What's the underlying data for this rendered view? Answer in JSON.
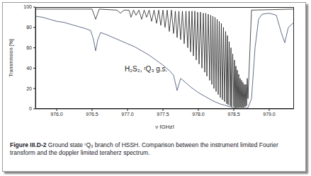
{
  "chart_data": {
    "type": "line",
    "xlabel": "ν [GHz]",
    "ylabel": "Transmission [%]",
    "annotations": [
      "H₂S₂, ʳQ₃ g.s."
    ],
    "xlim": [
      975.7,
      979.35
    ],
    "xticks": [
      {
        "value": 976,
        "label": "976.0"
      },
      {
        "value": 976.5,
        "label": "976.5"
      },
      {
        "value": 977,
        "label": "977.0"
      },
      {
        "value": 977.5,
        "label": "977.5"
      },
      {
        "value": 978,
        "label": "978.0"
      },
      {
        "value": 978.5,
        "label": "978.5"
      },
      {
        "value": 979,
        "label": "979.0"
      }
    ],
    "ylim": [
      0,
      100
    ],
    "yticks": [
      0,
      20,
      40,
      60,
      80,
      100
    ],
    "series": [
      {
        "color": "#222222",
        "x": [
          975.7,
          976.5,
          976.55,
          976.6,
          976.85,
          976.9,
          976.95,
          977.02,
          977.05,
          977.085,
          977.12,
          977.16,
          977.2,
          977.235,
          977.27,
          977.305,
          977.34,
          977.375,
          977.41,
          977.44,
          977.47,
          977.5,
          977.53,
          977.56,
          977.59,
          977.62,
          977.65,
          977.675,
          977.7,
          977.725,
          977.75,
          977.775,
          977.8,
          977.825,
          977.85,
          977.87,
          977.89,
          977.91,
          977.93,
          977.95,
          977.97,
          977.99,
          978.01,
          978.03,
          978.05,
          978.07,
          978.09,
          978.105,
          978.12,
          978.14,
          978.16,
          978.175,
          978.19,
          978.205,
          978.22,
          978.235,
          978.25,
          978.265,
          978.28,
          978.295,
          978.31,
          978.325,
          978.34,
          978.355,
          978.37,
          978.385,
          978.4,
          978.41,
          978.42,
          978.435,
          978.45,
          978.46,
          978.47,
          978.485,
          978.5,
          978.51,
          978.52,
          978.53,
          978.54,
          978.55,
          978.56,
          978.57,
          978.58,
          978.59,
          978.6,
          978.61,
          978.62,
          978.63,
          978.64,
          978.65,
          978.66,
          978.67,
          978.68,
          978.69,
          978.7,
          978.75,
          979.35
        ],
        "values": [
          98,
          98,
          88,
          98,
          97,
          94,
          97,
          97,
          90,
          97,
          92,
          97,
          88,
          97,
          90,
          97,
          86,
          97,
          84,
          97,
          82,
          97,
          80,
          97,
          76,
          97,
          74,
          96,
          70,
          96,
          68,
          96,
          64,
          96,
          60,
          96,
          56,
          96,
          52,
          96,
          48,
          95,
          44,
          95,
          40,
          94,
          36,
          94,
          32,
          93,
          28,
          92,
          24,
          91,
          20,
          90,
          17,
          88,
          14,
          86,
          11,
          84,
          9,
          80,
          7,
          76,
          5,
          72,
          4,
          66,
          3,
          60,
          2,
          54,
          2,
          48,
          1,
          42,
          1,
          38,
          1,
          34,
          1,
          30,
          1,
          28,
          1,
          26,
          1,
          24,
          2,
          24,
          3,
          30,
          10,
          97,
          98
        ]
      },
      {
        "color": "#3a4a6a",
        "x": [
          975.7,
          975.8,
          975.9,
          976.0,
          976.1,
          976.2,
          976.3,
          976.4,
          976.48,
          976.52,
          976.55,
          976.58,
          976.62,
          976.7,
          976.8,
          976.9,
          977.0,
          977.1,
          977.2,
          977.3,
          977.4,
          977.5,
          977.6,
          977.65,
          977.7,
          977.75,
          977.8,
          977.9,
          978.0,
          978.1,
          978.2,
          978.3,
          978.4,
          978.5,
          978.6,
          978.7,
          978.75,
          978.8,
          978.85,
          978.9,
          979.0,
          979.1,
          979.17,
          979.22,
          979.27,
          979.35
        ],
        "values": [
          91,
          90,
          88,
          86,
          85,
          83,
          81,
          79,
          77,
          68,
          57,
          68,
          75,
          73,
          70,
          67,
          64,
          61,
          57,
          53,
          48,
          43,
          37,
          33,
          18,
          30,
          27,
          21,
          16,
          12,
          8,
          5,
          3,
          1,
          0,
          1,
          10,
          60,
          88,
          93,
          94,
          92,
          75,
          65,
          80,
          85
        ]
      }
    ]
  },
  "caption": {
    "label": "Figure III.D-2",
    "text": "Ground state ʳQ₃ branch of HSSH. Comparison between the instrument limited Fourier transform and the doppler limited teraherz spectrum."
  }
}
